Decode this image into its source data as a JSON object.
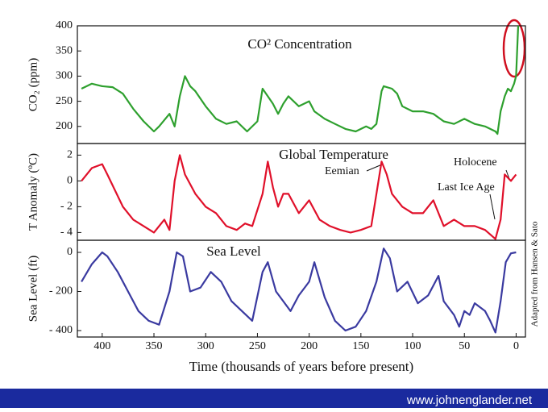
{
  "chart_data": [
    {
      "type": "line",
      "title": "CO² Concentration",
      "ylabel": "CO₂ (ppm)",
      "xlim": [
        424,
        -9
      ],
      "ylim": [
        166,
        400
      ],
      "yticks": [
        200,
        250,
        300,
        350,
        400
      ],
      "series": [
        {
          "name": "CO2",
          "color": "#2ea02e",
          "x": [
            420,
            410,
            400,
            390,
            380,
            370,
            360,
            350,
            345,
            335,
            330,
            325,
            320,
            315,
            310,
            300,
            290,
            280,
            270,
            260,
            250,
            245,
            240,
            235,
            230,
            225,
            220,
            210,
            200,
            195,
            185,
            175,
            165,
            155,
            145,
            140,
            135,
            130,
            128,
            120,
            115,
            110,
            100,
            90,
            80,
            70,
            60,
            50,
            40,
            30,
            20,
            18,
            15,
            11,
            8,
            5,
            2,
            0,
            -2
          ],
          "values": [
            275,
            285,
            280,
            278,
            265,
            235,
            210,
            190,
            200,
            225,
            200,
            260,
            300,
            280,
            270,
            240,
            215,
            205,
            210,
            190,
            210,
            275,
            260,
            245,
            225,
            245,
            260,
            240,
            250,
            230,
            215,
            205,
            195,
            190,
            200,
            195,
            205,
            270,
            280,
            275,
            265,
            240,
            230,
            230,
            225,
            210,
            205,
            215,
            205,
            200,
            190,
            185,
            230,
            260,
            275,
            270,
            285,
            300,
            400
          ]
        }
      ]
    },
    {
      "type": "line",
      "title": "Global Temperature",
      "ylabel": "T Anomaly (ºC)",
      "annotations": [
        "Eemian",
        "Holocene",
        "Last Ice Age"
      ],
      "xlim": [
        424,
        -9
      ],
      "ylim": [
        -4.6,
        2.9
      ],
      "yticks": [
        2,
        0,
        {
          "value": -2,
          "label": "- 2"
        },
        {
          "value": -4,
          "label": "- 4"
        }
      ],
      "series": [
        {
          "name": "Temperature",
          "color": "#e0102a",
          "x": [
            420,
            410,
            400,
            395,
            380,
            370,
            360,
            350,
            340,
            335,
            330,
            325,
            320,
            310,
            300,
            290,
            280,
            270,
            262,
            255,
            245,
            240,
            235,
            230,
            225,
            220,
            210,
            200,
            190,
            180,
            170,
            160,
            150,
            140,
            135,
            130,
            125,
            120,
            110,
            100,
            90,
            80,
            70,
            60,
            50,
            40,
            30,
            20,
            15,
            11,
            5,
            0
          ],
          "values": [
            0,
            1,
            1.3,
            0.5,
            -2,
            -3,
            -3.5,
            -4,
            -3,
            -3.8,
            0,
            2,
            0.5,
            -1,
            -2,
            -2.5,
            -3.5,
            -3.8,
            -3.3,
            -3.5,
            -1,
            1.5,
            -0.5,
            -2,
            -1,
            -1,
            -2.5,
            -1.5,
            -3,
            -3.5,
            -3.8,
            -4,
            -3.8,
            -3.5,
            -1,
            1.5,
            0.5,
            -1,
            -2,
            -2.5,
            -2.5,
            -1.5,
            -3.5,
            -3,
            -3.5,
            -3.5,
            -3.8,
            -4.5,
            -3,
            0.5,
            0,
            0.5
          ]
        }
      ]
    },
    {
      "type": "line",
      "title": "Sea Level",
      "ylabel": "Sea Level (ft)",
      "xlabel": "Time (thousands of years before present)",
      "note": "Adapted from Hansen & Sato",
      "xlim": [
        424,
        -9
      ],
      "ylim": [
        -433,
        62
      ],
      "xticks": [
        400,
        350,
        300,
        250,
        200,
        150,
        100,
        50,
        0
      ],
      "yticks": [
        0,
        {
          "value": -200,
          "label": "- 200"
        },
        {
          "value": -400,
          "label": "- 400"
        }
      ],
      "series": [
        {
          "name": "Sea Level",
          "color": "#3a3aa0",
          "x": [
            420,
            410,
            400,
            395,
            385,
            375,
            365,
            355,
            345,
            335,
            328,
            322,
            315,
            305,
            295,
            285,
            275,
            265,
            255,
            245,
            240,
            232,
            225,
            218,
            210,
            200,
            195,
            185,
            175,
            165,
            155,
            145,
            135,
            128,
            122,
            115,
            105,
            95,
            85,
            75,
            70,
            60,
            55,
            50,
            45,
            40,
            30,
            25,
            20,
            15,
            10,
            5,
            0
          ],
          "values": [
            -150,
            -60,
            0,
            -20,
            -100,
            -200,
            -300,
            -350,
            -370,
            -200,
            0,
            -20,
            -200,
            -180,
            -100,
            -150,
            -250,
            -300,
            -350,
            -100,
            -50,
            -200,
            -250,
            -300,
            -220,
            -150,
            -50,
            -230,
            -350,
            -400,
            -380,
            -300,
            -150,
            20,
            -30,
            -200,
            -150,
            -260,
            -220,
            -120,
            -250,
            -320,
            -380,
            -300,
            -320,
            -260,
            -300,
            -350,
            -410,
            -250,
            -50,
            -5,
            0
          ]
        }
      ]
    }
  ],
  "footer": "www.johnenglander.net"
}
